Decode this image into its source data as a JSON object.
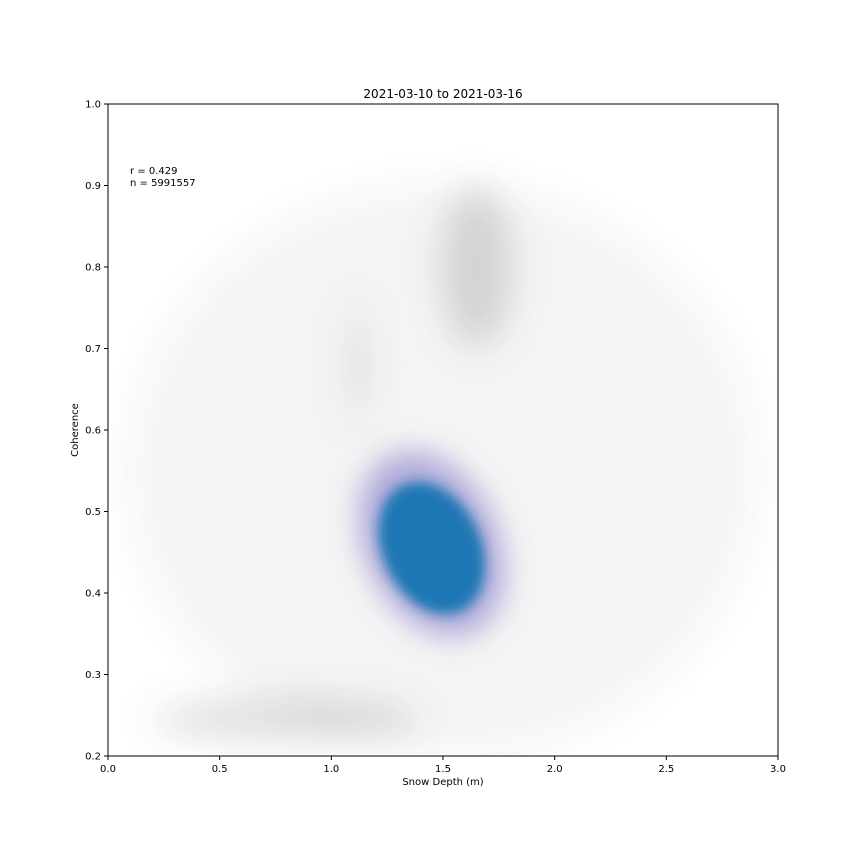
{
  "chart_data": {
    "type": "scatter",
    "title": "2021-03-10 to 2021-03-16",
    "xlabel": "Snow Depth (m)",
    "ylabel": "Coherence",
    "xlim": [
      0.0,
      3.0
    ],
    "ylim": [
      0.2,
      1.0
    ],
    "xticks": [
      "0.0",
      "0.5",
      "1.0",
      "1.5",
      "2.0",
      "2.5",
      "3.0"
    ],
    "yticks": [
      "0.2",
      "0.3",
      "0.4",
      "0.5",
      "0.6",
      "0.7",
      "0.8",
      "0.9",
      "1.0"
    ],
    "grid": false,
    "legend": "none",
    "annotations": [
      "r = 0.429",
      "n = 5991557"
    ],
    "colors": {
      "points": "#1f77b4",
      "halo": "#7a6fc4",
      "background_points": "#555555"
    },
    "density_regions": [
      {
        "name": "core",
        "color": "#1f77b4",
        "center": [
          1.45,
          0.455
        ],
        "spread": [
          0.22,
          0.085
        ],
        "tilt": 0.5
      },
      {
        "name": "halo",
        "color": "#7a6fc4",
        "center": [
          1.45,
          0.46
        ],
        "spread": [
          0.3,
          0.12
        ],
        "tilt": 0.5
      },
      {
        "name": "upper-plume",
        "color": "#555555",
        "center": [
          1.65,
          0.8
        ],
        "spread": [
          0.16,
          0.1
        ],
        "tilt": 0
      },
      {
        "name": "low-band",
        "color": "#555555",
        "center": [
          0.8,
          0.245
        ],
        "spread": [
          0.6,
          0.025
        ],
        "tilt": 0
      },
      {
        "name": "thin-column",
        "color": "#555555",
        "center": [
          1.12,
          0.68
        ],
        "spread": [
          0.03,
          0.08
        ],
        "tilt": 0
      },
      {
        "name": "diffuse-background",
        "color": "#555555",
        "center": [
          1.5,
          0.55
        ],
        "spread": [
          1.4,
          0.35
        ],
        "tilt": 0
      }
    ]
  }
}
